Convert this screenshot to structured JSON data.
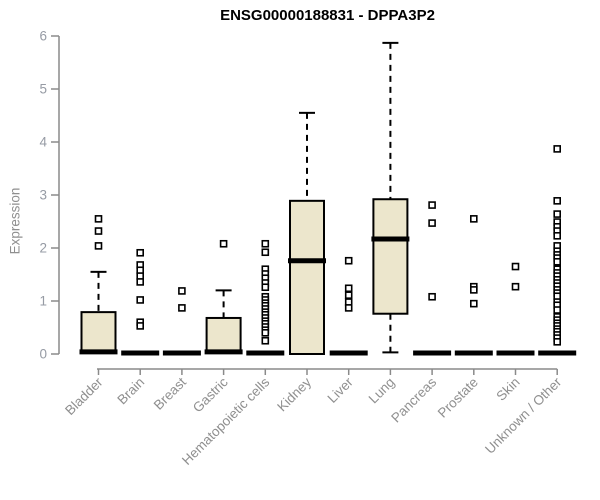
{
  "page": {
    "title": "ENSG00000188831 - DPPA3P2"
  },
  "chart_data": {
    "type": "boxplot",
    "title": "ENSG00000188831 - DPPA3P2",
    "ylabel": "Expression",
    "xlabel": "",
    "ylim": [
      0,
      6
    ],
    "yticks": [
      0,
      1,
      2,
      3,
      4,
      5,
      6
    ],
    "grid": false,
    "legend": "none",
    "x_tick_rotation": 45,
    "categories": [
      "Bladder",
      "Brain",
      "Breast",
      "Gastric",
      "Hematopoietic cells",
      "Kidney",
      "Liver",
      "Lung",
      "Pancreas",
      "Prostate",
      "Skin",
      "Unknown / Other"
    ],
    "series": [
      {
        "category": "Bladder",
        "q1": 0.02,
        "median": 0.04,
        "q3": 0.79,
        "whisker_low": 0.02,
        "whisker_high": 1.55,
        "outliers": [
          2.55,
          2.32,
          2.04
        ]
      },
      {
        "category": "Brain",
        "q1": 0.0,
        "median": 0.02,
        "q3": 0.04,
        "whisker_low": 0.0,
        "whisker_high": 0.04,
        "outliers": [
          1.91,
          1.68,
          1.58,
          1.47,
          1.36,
          1.02,
          0.6,
          0.53
        ]
      },
      {
        "category": "Breast",
        "q1": 0.0,
        "median": 0.02,
        "q3": 0.04,
        "whisker_low": 0.0,
        "whisker_high": 0.04,
        "outliers": [
          1.19,
          0.87
        ]
      },
      {
        "category": "Gastric",
        "q1": 0.02,
        "median": 0.04,
        "q3": 0.68,
        "whisker_low": 0.02,
        "whisker_high": 1.2,
        "outliers": [
          2.08
        ]
      },
      {
        "category": "Hematopoietic cells",
        "q1": 0.0,
        "median": 0.02,
        "q3": 0.04,
        "whisker_low": 0.0,
        "whisker_high": 0.04,
        "outliers": [
          2.08,
          1.92,
          1.6,
          1.51,
          1.43,
          1.34,
          1.26,
          1.08,
          1.02,
          0.96,
          0.91,
          0.85,
          0.79,
          0.74,
          0.68,
          0.62,
          0.57,
          0.51,
          0.45,
          0.4,
          0.25
        ]
      },
      {
        "category": "Kidney",
        "q1": 0.0,
        "median": 1.76,
        "q3": 2.89,
        "whisker_low": 0.0,
        "whisker_high": 4.55,
        "outliers": []
      },
      {
        "category": "Liver",
        "q1": 0.0,
        "median": 0.02,
        "q3": 0.04,
        "whisker_low": 0.0,
        "whisker_high": 0.04,
        "outliers": [
          1.76,
          1.24,
          1.11,
          0.98,
          0.87
        ]
      },
      {
        "category": "Lung",
        "q1": 0.76,
        "median": 2.17,
        "q3": 2.92,
        "whisker_low": 0.03,
        "whisker_high": 5.87,
        "outliers": []
      },
      {
        "category": "Pancreas",
        "q1": 0.0,
        "median": 0.02,
        "q3": 0.04,
        "whisker_low": 0.0,
        "whisker_high": 0.04,
        "outliers": [
          2.81,
          2.47,
          1.08
        ]
      },
      {
        "category": "Prostate",
        "q1": 0.0,
        "median": 0.02,
        "q3": 0.04,
        "whisker_low": 0.0,
        "whisker_high": 0.04,
        "outliers": [
          2.55,
          1.27,
          1.21,
          0.95
        ]
      },
      {
        "category": "Skin",
        "q1": 0.0,
        "median": 0.02,
        "q3": 0.04,
        "whisker_low": 0.0,
        "whisker_high": 0.04,
        "outliers": [
          1.65,
          1.27
        ]
      },
      {
        "category": "Unknown / Other",
        "q1": 0.0,
        "median": 0.02,
        "q3": 0.04,
        "whisker_low": 0.0,
        "whisker_high": 0.04,
        "outliers": [
          3.87,
          2.89,
          2.64,
          2.49,
          2.4,
          2.32,
          2.23,
          2.04,
          1.94,
          1.87,
          1.81,
          1.74,
          1.6,
          1.53,
          1.47,
          1.4,
          1.34,
          1.28,
          1.21,
          1.15,
          1.09,
          0.98,
          0.92,
          0.83,
          0.7,
          0.64,
          0.58,
          0.53,
          0.47,
          0.42,
          0.36,
          0.3,
          0.23
        ]
      }
    ],
    "colors": {
      "box_fill": "#ECE6CC",
      "box_border": "#000000",
      "median": "#000000",
      "whisker": "#000000",
      "outlier_fill": "#FFFFFF",
      "axis": "#8A8A8A",
      "x_label": "#8F8F8F",
      "y_tick_label": "#969BA4",
      "title": "#000000",
      "background": "#FFFFFF"
    }
  }
}
